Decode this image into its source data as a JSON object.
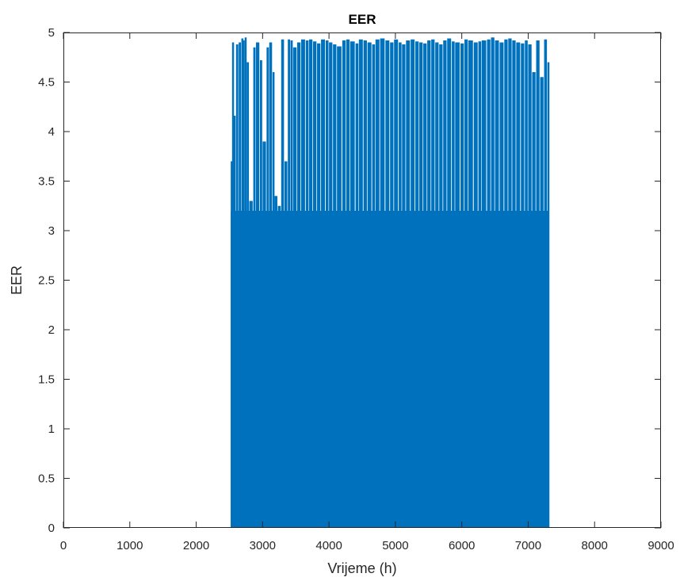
{
  "chart_data": {
    "type": "bar",
    "title": "EER",
    "xlabel": "Vrijeme (h)",
    "ylabel": "EER",
    "xlim": [
      0,
      9000
    ],
    "ylim": [
      0,
      5
    ],
    "xticks": [
      "0",
      "1000",
      "2000",
      "3000",
      "4000",
      "5000",
      "6000",
      "7000",
      "8000",
      "9000"
    ],
    "yticks": [
      "0",
      "0.5",
      "1",
      "1.5",
      "2",
      "2.5",
      "3",
      "3.5",
      "4",
      "4.5",
      "5"
    ],
    "grid": false,
    "legend": "none",
    "bar_color": "#0072BD",
    "x_range_of_data": [
      2520,
      7300
    ],
    "series": [
      {
        "x": [
          2520,
          2540,
          2560,
          2600,
          2640,
          2680,
          2700,
          2730,
          2760,
          2800,
          2860,
          2900,
          2960,
          3000,
          3060,
          3100,
          3150,
          3180,
          3230,
          3280,
          3330,
          3380,
          3420,
          3460,
          3520,
          3580,
          3650,
          3700,
          3760,
          3820,
          3880,
          3950,
          4000,
          4060,
          4120,
          4200,
          4260,
          4320,
          4400,
          4450,
          4520,
          4580,
          4650,
          4700,
          4770,
          4850,
          4920,
          4980,
          5050,
          5100,
          5160,
          5230,
          5300,
          5360,
          5420,
          5480,
          5540,
          5600,
          5660,
          5720,
          5780,
          5850,
          5900,
          5980,
          6040,
          6100,
          6180,
          6250,
          6300,
          6380,
          6440,
          6500,
          6570,
          6640,
          6700,
          6760,
          6820,
          6890,
          6950,
          7000,
          7060,
          7120,
          7180,
          7240,
          7290
        ],
        "values": [
          3.7,
          4.9,
          4.16,
          4.88,
          4.9,
          4.94,
          4.92,
          4.95,
          4.7,
          3.3,
          4.85,
          4.9,
          4.72,
          3.9,
          4.85,
          4.9,
          4.6,
          3.35,
          3.25,
          4.93,
          3.7,
          4.93,
          4.92,
          4.85,
          4.9,
          4.93,
          4.92,
          4.93,
          4.91,
          4.89,
          4.93,
          4.92,
          4.9,
          4.88,
          4.86,
          4.92,
          4.93,
          4.91,
          4.89,
          4.93,
          4.92,
          4.9,
          4.88,
          4.93,
          4.94,
          4.92,
          4.9,
          4.93,
          4.9,
          4.88,
          4.92,
          4.93,
          4.91,
          4.9,
          4.89,
          4.92,
          4.93,
          4.9,
          4.88,
          4.92,
          4.94,
          4.91,
          4.9,
          4.89,
          4.93,
          4.92,
          4.9,
          4.91,
          4.92,
          4.93,
          4.95,
          4.92,
          4.9,
          4.93,
          4.94,
          4.92,
          4.9,
          4.89,
          4.92,
          4.88,
          4.6,
          4.92,
          4.55,
          4.93,
          4.7
        ]
      }
    ]
  }
}
